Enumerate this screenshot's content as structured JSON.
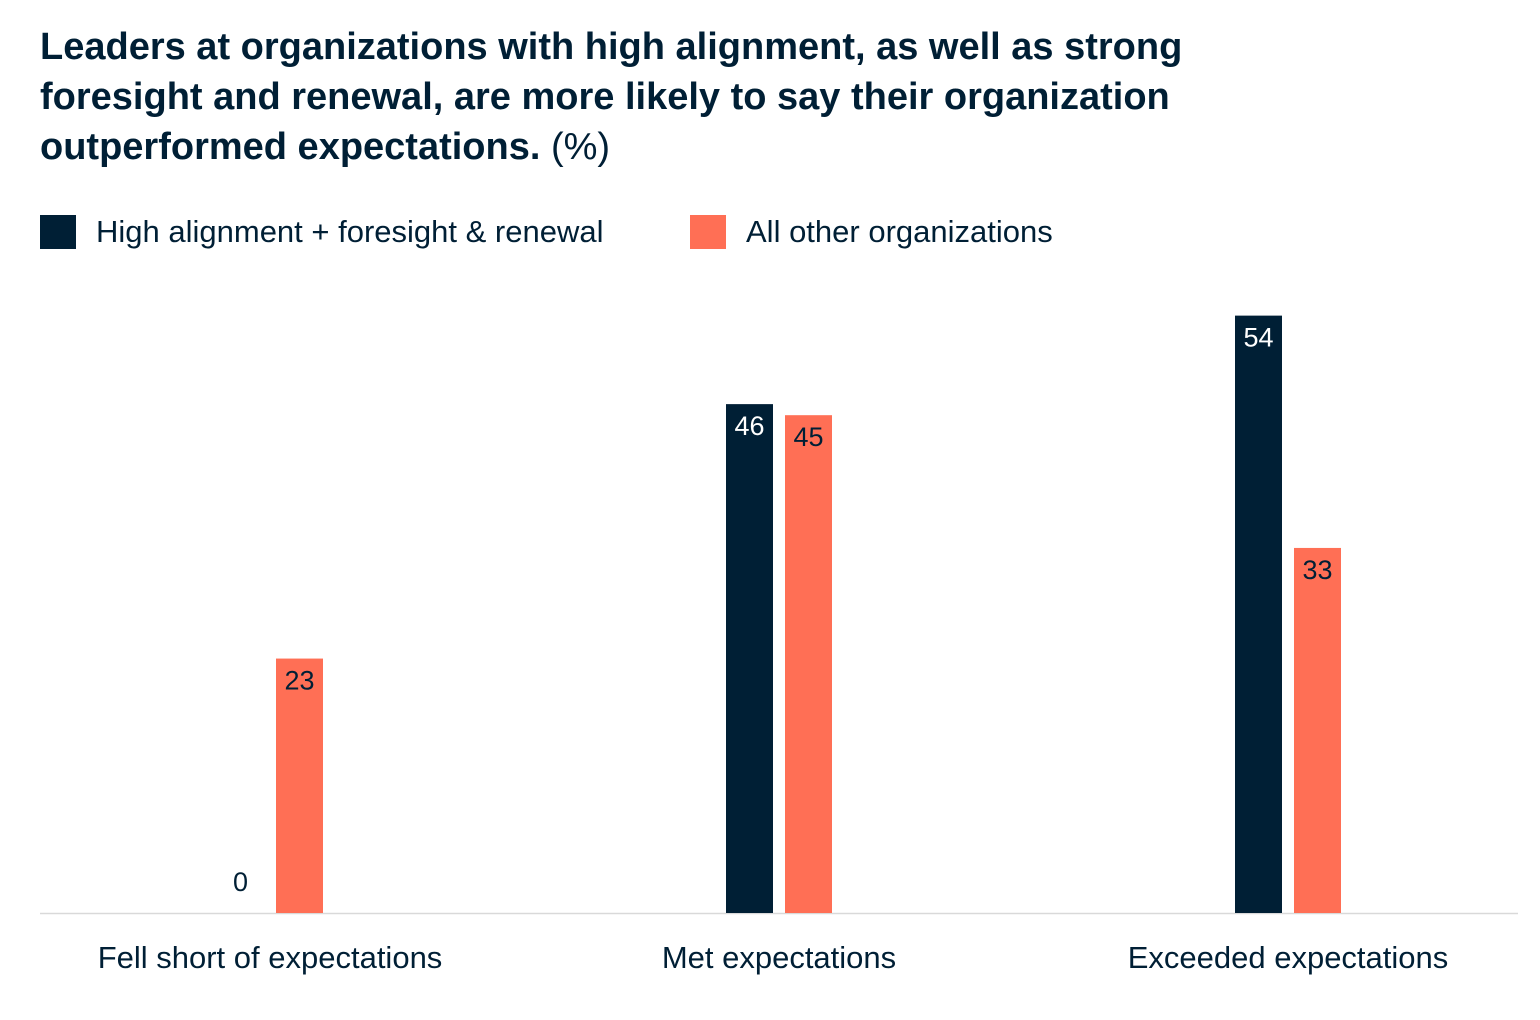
{
  "chart_data": {
    "type": "bar",
    "title": "Leaders at organizations with high alignment, as well as strong foresight and renewal, are more likely to say their organization outperformed expectations.",
    "title_unit": "(%)",
    "categories": [
      "Fell short of expectations",
      "Met expectations",
      "Exceeded expectations"
    ],
    "series": [
      {
        "name": "High alignment + foresight & renewal",
        "color": "#001f35",
        "label_color": "#ffffff",
        "values": [
          0,
          46,
          54
        ]
      },
      {
        "name": "All other organizations",
        "color": "#ff6f55",
        "label_color": "#001f35",
        "values": [
          23,
          45,
          33
        ]
      }
    ],
    "ylim": [
      0,
      56
    ],
    "grid": false,
    "legend_position": "top-left",
    "baseline_color": "#d9d9d9"
  }
}
